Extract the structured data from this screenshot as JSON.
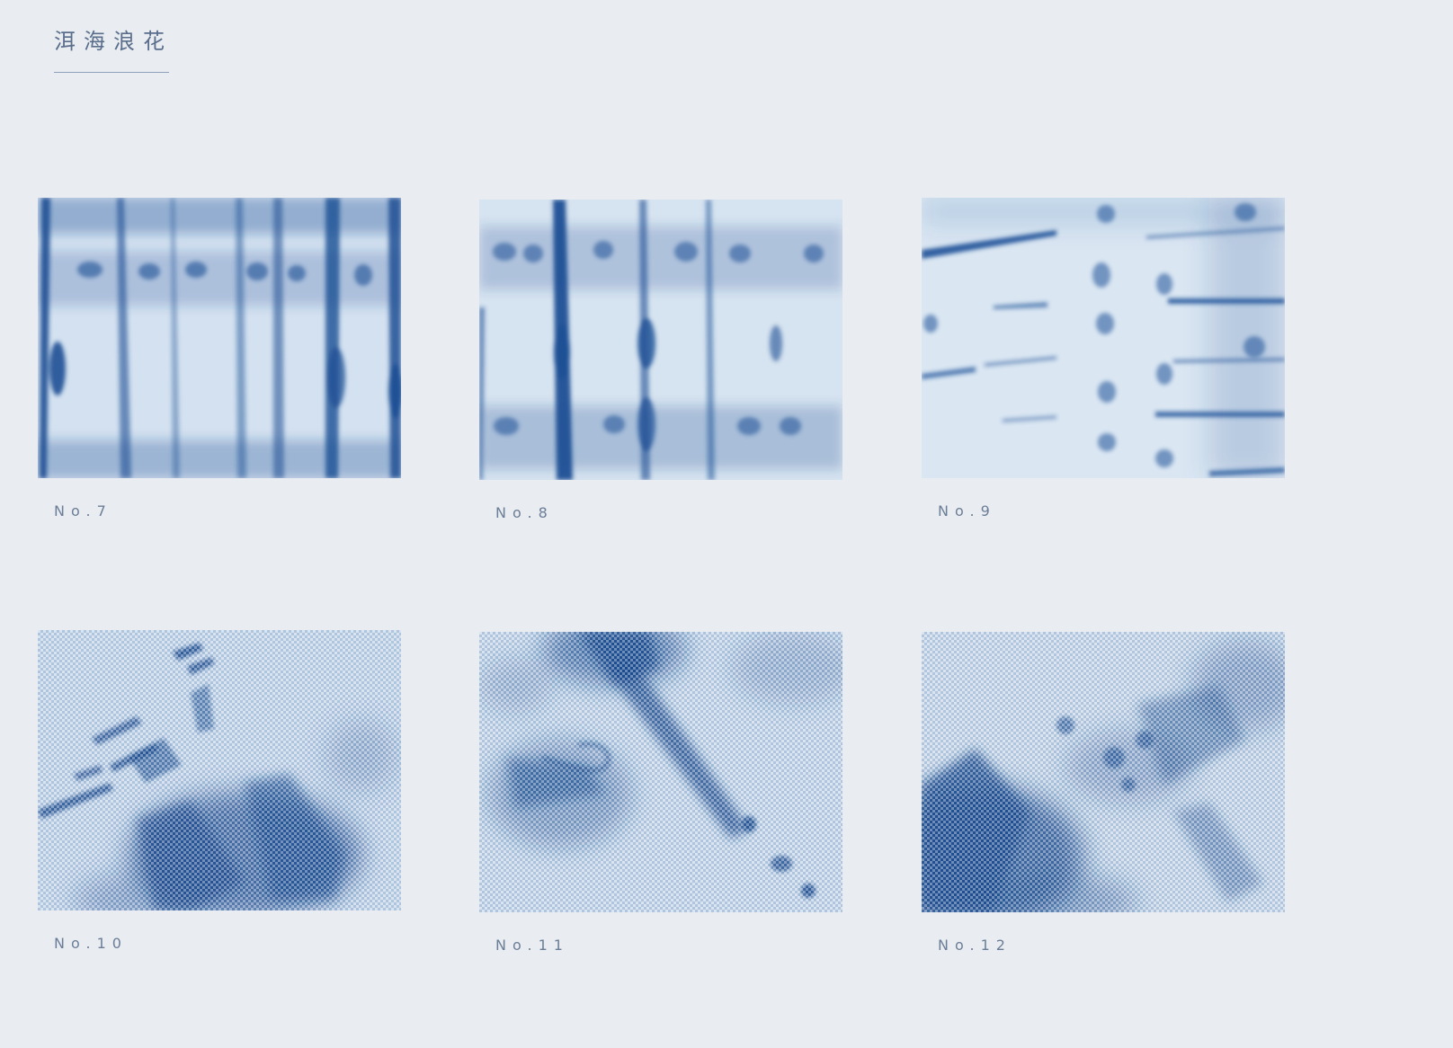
{
  "header": {
    "title": "洱海浪花"
  },
  "gallery": {
    "items": [
      {
        "label": "No.7",
        "pattern": "vertical-stripes",
        "base_color": "#d3e1f0",
        "dye_color": "#1d4f94"
      },
      {
        "label": "No.8",
        "pattern": "vertical-stripes-rows",
        "base_color": "#d6e3f0",
        "dye_color": "#1c4f95"
      },
      {
        "label": "No.9",
        "pattern": "horizontal-streaks",
        "base_color": "#dae6f2",
        "dye_color": "#1e5198"
      },
      {
        "label": "No.10",
        "pattern": "woven-dark-bottom",
        "base_color": "#c5d6ea",
        "dye_color": "#174a8f"
      },
      {
        "label": "No.11",
        "pattern": "woven-diagonal",
        "base_color": "#c7d8eb",
        "dye_color": "#174a8f"
      },
      {
        "label": "No.12",
        "pattern": "woven-dark-left",
        "base_color": "#c8d8ea",
        "dye_color": "#174a8f"
      }
    ]
  }
}
